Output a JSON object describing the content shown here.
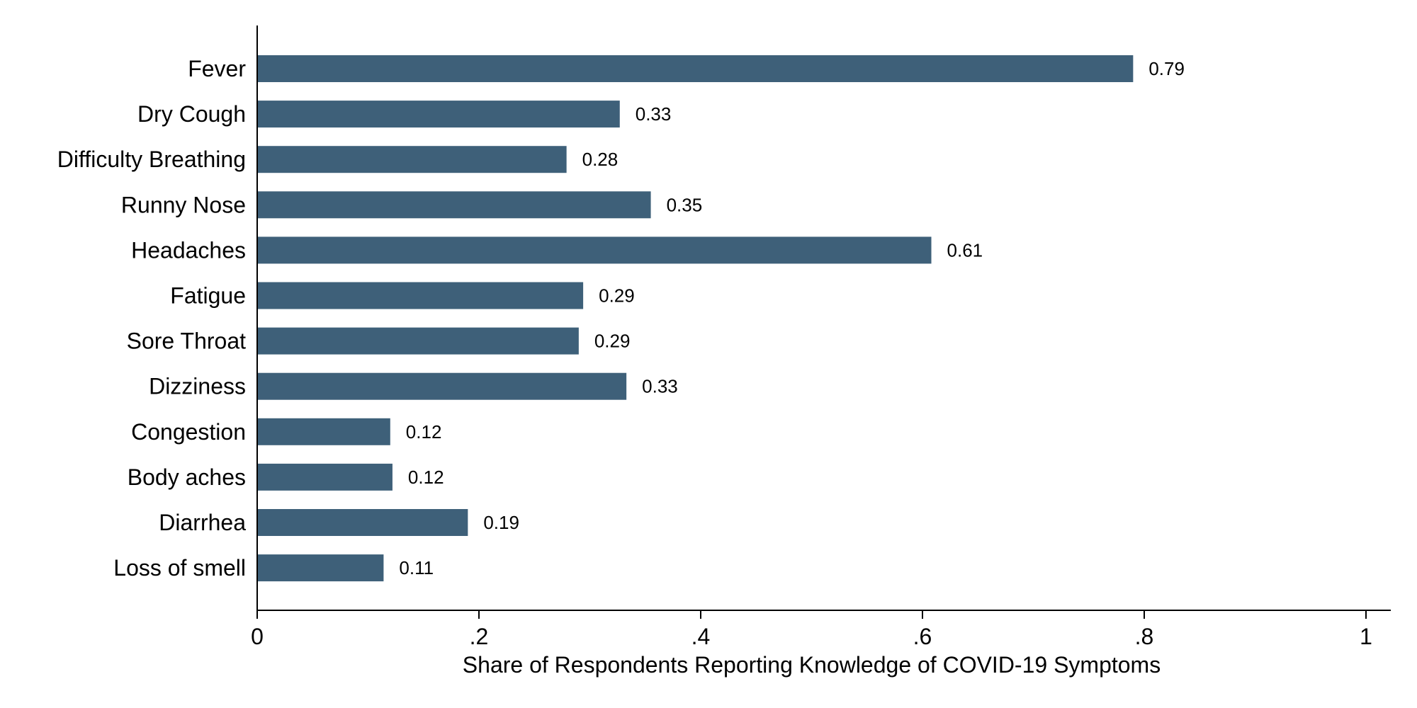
{
  "chart_data": {
    "type": "bar",
    "orientation": "horizontal",
    "categories": [
      "Fever",
      "Dry Cough",
      "Difficulty Breathing",
      "Runny Nose",
      "Headaches",
      "Fatigue",
      "Sore Throat",
      "Dizziness",
      "Congestion",
      "Body aches",
      "Diarrhea",
      "Loss of smell"
    ],
    "values": [
      0.79,
      0.327,
      0.279,
      0.355,
      0.608,
      0.294,
      0.29,
      0.333,
      0.12,
      0.122,
      0.19,
      0.114
    ],
    "data_labels": [
      "0.79",
      "0.33",
      "0.28",
      "0.35",
      "0.61",
      "0.29",
      "0.29",
      "0.33",
      "0.12",
      "0.12",
      "0.19",
      "0.11"
    ],
    "title": "",
    "xlabel": "Share of Respondents Reporting Knowledge of COVID-19 Symptoms",
    "ylabel": "",
    "xlim": [
      0,
      1
    ],
    "x_ticks": [
      0,
      0.2,
      0.4,
      0.6,
      0.8,
      1
    ],
    "x_tick_labels": [
      "0",
      ".2",
      ".4",
      ".6",
      ".8",
      "1"
    ],
    "grid": false,
    "bar_color": "#3e6079"
  }
}
